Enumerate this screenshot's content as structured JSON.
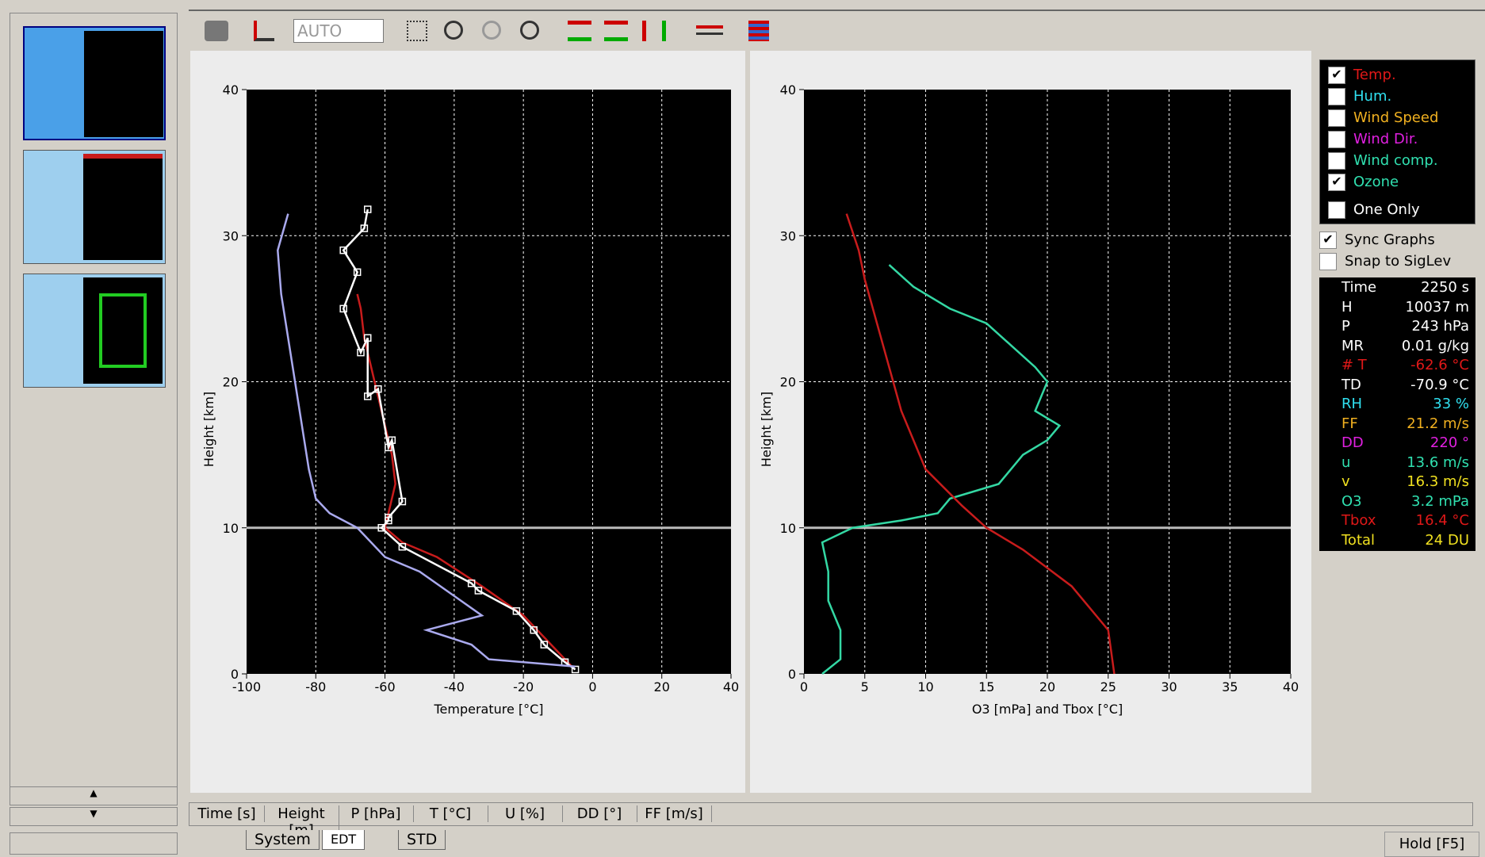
{
  "toolbar": {
    "combo": "AUTO"
  },
  "chart_data": [
    {
      "type": "line",
      "ylabel": "Height [km]",
      "xlabel": "Temperature [°C]",
      "xlim": [
        -100,
        40
      ],
      "xticks": [
        -100,
        -80,
        -60,
        -40,
        -20,
        0,
        20,
        40
      ],
      "ylim": [
        0,
        40
      ],
      "yticks": [
        0,
        10,
        20,
        30,
        40
      ],
      "grid": true,
      "hline": 10,
      "series": [
        {
          "color": "#c81c1c",
          "markers": false,
          "x": [
            -6,
            -12,
            -20,
            -32,
            -45,
            -55,
            -60,
            -59,
            -57,
            -58,
            -60,
            -62,
            -64,
            -66,
            -67,
            -68
          ],
          "values": [
            0.5,
            2,
            4,
            6,
            8,
            9,
            10,
            11,
            13,
            15,
            17,
            19,
            21,
            23,
            25,
            26
          ]
        },
        {
          "color": "#ffffff",
          "markers": true,
          "x": [
            -5,
            -8,
            -14,
            -17,
            -22,
            -33,
            -35,
            -55,
            -61,
            -59,
            -59,
            -55,
            -58,
            -59,
            -62,
            -65,
            -65,
            -67,
            -72,
            -68,
            -72,
            -66,
            -65
          ],
          "values": [
            0.3,
            0.8,
            2,
            3,
            4.3,
            5.7,
            6.2,
            8.7,
            10,
            10.5,
            10.7,
            11.8,
            16,
            15.5,
            19.5,
            19,
            23,
            22,
            25,
            27.5,
            29,
            30.5,
            31.8
          ]
        },
        {
          "color": "#aaaaee",
          "markers": false,
          "x": [
            -5,
            -30,
            -35,
            -48,
            -32,
            -38,
            -50,
            -60,
            -68,
            -76,
            -80,
            -82,
            -84,
            -86,
            -88,
            -90,
            -91,
            -88
          ],
          "values": [
            0.5,
            1,
            2,
            3,
            4,
            5,
            7,
            8,
            10,
            11,
            12,
            14,
            17,
            20,
            23,
            26,
            29,
            31.5
          ]
        }
      ]
    },
    {
      "type": "line",
      "ylabel": "Height [km]",
      "xlabel": "O3 [mPa] and Tbox [°C]",
      "xlim": [
        0,
        40
      ],
      "xticks": [
        0,
        5,
        10,
        15,
        20,
        25,
        30,
        35,
        40
      ],
      "ylim": [
        0,
        40
      ],
      "yticks": [
        0,
        10,
        20,
        30,
        40
      ],
      "grid": true,
      "hline": 10,
      "series": [
        {
          "color": "#34d8a4",
          "markers": false,
          "x": [
            1.5,
            3,
            3,
            2,
            2,
            1.5,
            4,
            8,
            11,
            12,
            16,
            17,
            18,
            20,
            21,
            19,
            20,
            19,
            17,
            15,
            12,
            9,
            7
          ],
          "values": [
            0,
            1,
            3,
            5,
            7,
            9,
            10,
            10.5,
            11,
            12,
            13,
            14,
            15,
            16,
            17,
            18,
            20,
            21,
            22.5,
            24,
            25,
            26.5,
            28
          ]
        },
        {
          "color": "#c81c1c",
          "markers": false,
          "x": [
            25.5,
            25,
            22,
            18,
            15,
            13,
            10,
            8,
            7,
            6,
            5,
            4.5,
            3.5
          ],
          "values": [
            0,
            3,
            6,
            8.5,
            10,
            11.5,
            14,
            18,
            21,
            24,
            27,
            29,
            31.5
          ]
        }
      ]
    }
  ],
  "legend": {
    "items": [
      {
        "label": "Temp.",
        "checked": true,
        "color": "#e01818"
      },
      {
        "label": "Hum.",
        "checked": false,
        "color": "#30e0f0"
      },
      {
        "label": "Wind Speed",
        "checked": false,
        "color": "#f0b020"
      },
      {
        "label": "Wind Dir.",
        "checked": false,
        "color": "#e020e0"
      },
      {
        "label": "Wind comp.",
        "checked": false,
        "color": "#30e0b0"
      },
      {
        "label": "Ozone",
        "checked": true,
        "color": "#30e0b0"
      }
    ],
    "one_only": {
      "label": "One Only",
      "checked": false
    }
  },
  "options": [
    {
      "label": "Sync Graphs",
      "checked": true
    },
    {
      "label": "Snap to SigLev",
      "checked": false
    }
  ],
  "readout": [
    {
      "label": "Time",
      "value": "2250 s",
      "color": "#ffffff"
    },
    {
      "label": "H",
      "value": "10037 m",
      "color": "#ffffff"
    },
    {
      "label": "P",
      "value": "243 hPa",
      "color": "#ffffff"
    },
    {
      "label": "MR",
      "value": "0.01 g/kg",
      "color": "#ffffff"
    },
    {
      "label": "# T",
      "value": "-62.6 °C",
      "color": "#e01818"
    },
    {
      "label": "TD",
      "value": "-70.9 °C",
      "color": "#ffffff"
    },
    {
      "label": "RH",
      "value": "33 %",
      "color": "#30e0f0"
    },
    {
      "label": "FF",
      "value": "21.2 m/s",
      "color": "#f0b020"
    },
    {
      "label": "DD",
      "value": "220 °",
      "color": "#e020e0"
    },
    {
      "label": "u",
      "value": "13.6 m/s",
      "color": "#30e0b0"
    },
    {
      "label": "v",
      "value": "16.3 m/s",
      "color": "#f0e020"
    },
    {
      "label": "O3",
      "value": "3.2 mPa",
      "color": "#30e0b0"
    },
    {
      "label": "Tbox",
      "value": "16.4 °C",
      "color": "#e01818"
    },
    {
      "label": "Total",
      "value": "24 DU",
      "color": "#f0e020"
    }
  ],
  "columns": [
    "Time [s]",
    "Height [m]",
    "P [hPa]",
    "T [°C]",
    "U [%]",
    "DD [°]",
    "FF [m/s]"
  ],
  "tabs": [
    "System",
    "EDT",
    "STD"
  ],
  "hold": "Hold [F5]"
}
